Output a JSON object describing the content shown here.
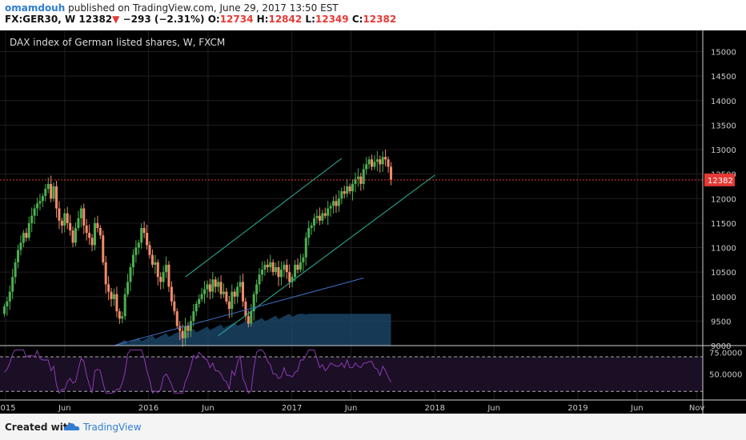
{
  "header": {
    "user": "omamdouh",
    "published": " published on TradingView.com, June 29, 2017 13:50 EST",
    "symbol": "FX:GER30, W",
    "price": "12382",
    "change_arrow": "▼",
    "change": "−293 (−2.31%)",
    "o_label": "O:",
    "o_value": "12734",
    "h_label": "H:",
    "h_value": "12842",
    "l_label": "L:",
    "l_value": "12349",
    "c_label": "C:",
    "c_value": "12382"
  },
  "footer": {
    "created_with": "Created with",
    "brand": "TradingView",
    "logo_icon": "tradingview-cloud-icon"
  },
  "colors": {
    "background": "#000000",
    "grid": "#1e1e1e",
    "up": "#4caf50",
    "down": "#f28b6b",
    "channel": "#2bb39a",
    "ma": "#3f6fc4",
    "volume": "#1e4d73",
    "rsi": "#8e3ab5",
    "rsi_band": "#1a0f24",
    "current_price": "#e53935",
    "axis_text": "#c8c8c8"
  },
  "chart_data": [
    {
      "type": "candlestick",
      "title": "DAX index of German listed shares, W, FXCM",
      "x_ticks": [
        "2015",
        "Jun",
        "2016",
        "Jun",
        "2017",
        "Jun",
        "2018",
        "Jun",
        "2019",
        "Jun",
        "Nov"
      ],
      "y_ticks": [
        9000,
        9500,
        10000,
        10500,
        11000,
        11500,
        12000,
        12500,
        13000,
        13500,
        14000,
        14500,
        15000
      ],
      "ylim": [
        9000,
        15400
      ],
      "current_price_label": "12382",
      "current_price": 12382,
      "grid": true,
      "closes_weekly": [
        9800,
        9900,
        10100,
        10400,
        10700,
        10950,
        11100,
        11300,
        11200,
        11500,
        11650,
        11800,
        11900,
        11950,
        12050,
        12200,
        12300,
        12000,
        12250,
        11800,
        11550,
        11450,
        11700,
        11500,
        11350,
        11100,
        11400,
        11600,
        11800,
        11450,
        11300,
        11200,
        11050,
        11500,
        11400,
        11250,
        10700,
        10250,
        10100,
        9950,
        10050,
        9700,
        9550,
        9600,
        10050,
        10300,
        10600,
        10850,
        11000,
        11100,
        11400,
        11300,
        11050,
        10850,
        10650,
        10700,
        10400,
        10300,
        10500,
        10650,
        10200,
        9900,
        9700,
        9400,
        9300,
        9150,
        9400,
        9300,
        9500,
        9700,
        9850,
        9950,
        10050,
        10150,
        10250,
        10100,
        10350,
        10200,
        10300,
        10050,
        10100,
        9900,
        9750,
        10100,
        10000,
        10200,
        10300,
        9900,
        9600,
        9450,
        9700,
        10050,
        10250,
        10450,
        10550,
        10650,
        10600,
        10700,
        10500,
        10600,
        10400,
        10550,
        10650,
        10500,
        10300,
        10400,
        10650,
        10550,
        10700,
        10800,
        11200,
        11400,
        11450,
        11600,
        11650,
        11550,
        11700,
        11650,
        11800,
        11850,
        11950,
        11850,
        12000,
        12150,
        12100,
        12250,
        12150,
        12300,
        12400,
        12450,
        12300,
        12600,
        12700,
        12800,
        12650,
        12750,
        12800,
        12700,
        12850,
        12800,
        12650,
        12382
      ],
      "channel_upper": {
        "x": [
          "2016-04-04",
          "2017-05-08"
        ],
        "y": [
          10400,
          12820
        ]
      },
      "channel_lower": {
        "x": [
          "2016-06-27",
          "2018-01-01"
        ],
        "y": [
          9200,
          12480
        ]
      },
      "moving_average": {
        "x": [
          "2015-10-05",
          "2017-07-03"
        ],
        "y": [
          9000,
          10380
        ]
      }
    },
    {
      "type": "line",
      "name": "RSI",
      "y_ticks": [
        50,
        75
      ],
      "y_tick_labels": [
        "50.0000",
        "75.0000"
      ],
      "bands": [
        30,
        70
      ],
      "ylim": [
        20,
        82
      ]
    }
  ]
}
